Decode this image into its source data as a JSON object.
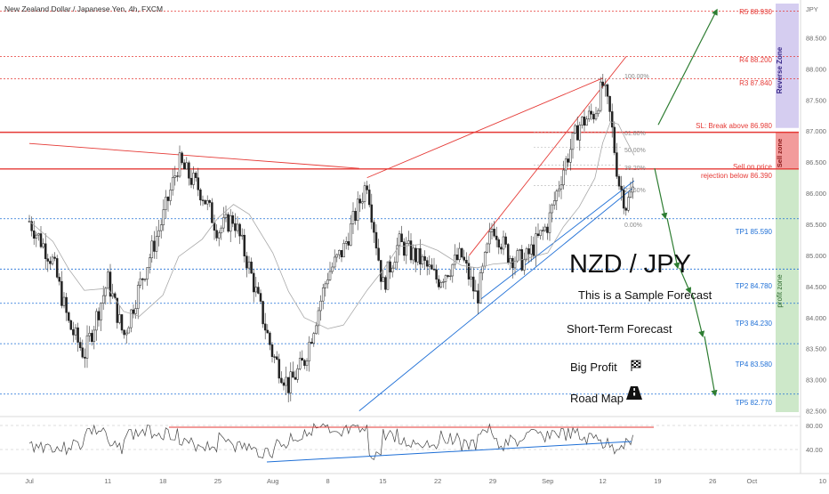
{
  "header": {
    "symbol_title": "New Zealand Dollar / Japanese Yen, 4h, FXCM",
    "currency": "JPY"
  },
  "chart_data": {
    "type": "candlestick",
    "ylim": [
      82.48,
      89.05
    ],
    "y_ticks": [
      "82.500",
      "83.000",
      "83.500",
      "84.000",
      "84.500",
      "85.000",
      "85.500",
      "86.000",
      "86.500",
      "87.000",
      "87.500",
      "88.000",
      "88.500"
    ],
    "x_ticks": [
      "Jul",
      "11",
      "18",
      "25",
      "Aug",
      "8",
      "15",
      "22",
      "29",
      "Sep",
      "12",
      "19",
      "26",
      "Oct",
      "10"
    ],
    "levels": [
      {
        "name": "R5",
        "value": 88.93,
        "label": "R5 88.930",
        "color": "#e53935"
      },
      {
        "name": "R4",
        "value": 88.2,
        "label": "R4 88.200",
        "color": "#e53935"
      },
      {
        "name": "R3",
        "value": 87.84,
        "label": "R3 87.840",
        "color": "#e53935"
      },
      {
        "name": "SL",
        "value": 86.98,
        "label": "SL: Break above 86.980",
        "color": "#e53935"
      },
      {
        "name": "Sell",
        "value": 86.39,
        "label_line1": "Sell on price",
        "label_line2": "rejection below 86.390",
        "color": "#e53935"
      },
      {
        "name": "TP1",
        "value": 85.59,
        "label": "TP1 85.590",
        "color": "#1e6fd6"
      },
      {
        "name": "TP2",
        "value": 84.78,
        "label": "TP2 84.780",
        "color": "#1e6fd6"
      },
      {
        "name": "TP3",
        "value": 84.23,
        "label": "TP3 84.230",
        "color": "#1e6fd6"
      },
      {
        "name": "TP4",
        "value": 83.58,
        "label": "TP4 83.580",
        "color": "#1e6fd6"
      },
      {
        "name": "TP5",
        "value": 82.77,
        "label": "TP5 82.770",
        "color": "#1e6fd6"
      }
    ],
    "fib_levels": [
      "100.00%",
      "61.80%",
      "50.00%",
      "38.20%",
      "23.60%",
      "0.00%"
    ],
    "price_path": [
      {
        "t": "Jul 1",
        "v": 85.55
      },
      {
        "t": "Jul 4",
        "v": 84.9
      },
      {
        "t": "Jul 6",
        "v": 83.9
      },
      {
        "t": "Jul 8",
        "v": 83.4
      },
      {
        "t": "Jul 11",
        "v": 84.6
      },
      {
        "t": "Jul 13",
        "v": 83.7
      },
      {
        "t": "Jul 15",
        "v": 84.5
      },
      {
        "t": "Jul 18",
        "v": 85.6
      },
      {
        "t": "Jul 20",
        "v": 86.5
      },
      {
        "t": "Jul 23",
        "v": 86.0
      },
      {
        "t": "Jul 25",
        "v": 85.4
      },
      {
        "t": "Jul 27",
        "v": 85.6
      },
      {
        "t": "Jul 29",
        "v": 84.8
      },
      {
        "t": "Aug 1",
        "v": 83.4
      },
      {
        "t": "Aug 3",
        "v": 82.9
      },
      {
        "t": "Aug 5",
        "v": 83.3
      },
      {
        "t": "Aug 8",
        "v": 84.7
      },
      {
        "t": "Aug 10",
        "v": 85.1
      },
      {
        "t": "Aug 13",
        "v": 86.2
      },
      {
        "t": "Aug 15",
        "v": 84.5
      },
      {
        "t": "Aug 17",
        "v": 85.2
      },
      {
        "t": "Aug 20",
        "v": 84.9
      },
      {
        "t": "Aug 22",
        "v": 84.6
      },
      {
        "t": "Aug 25",
        "v": 85.0
      },
      {
        "t": "Aug 27",
        "v": 84.3
      },
      {
        "t": "Aug 29",
        "v": 85.5
      },
      {
        "t": "Aug 31",
        "v": 85.0
      },
      {
        "t": "Sep 2",
        "v": 84.9
      },
      {
        "t": "Sep 5",
        "v": 85.5
      },
      {
        "t": "Sep 7",
        "v": 86.4
      },
      {
        "t": "Sep 9",
        "v": 87.1
      },
      {
        "t": "Sep 11",
        "v": 87.3
      },
      {
        "t": "Sep 12",
        "v": 87.75
      },
      {
        "t": "Sep 13",
        "v": 87.2
      },
      {
        "t": "Sep 14",
        "v": 86.2
      },
      {
        "t": "Sep 15",
        "v": 85.8
      },
      {
        "t": "Sep 16",
        "v": 86.1
      }
    ],
    "forecast_path": [
      {
        "t": "Sep 16",
        "v": 86.4
      },
      {
        "t": "Sep 20",
        "v": 85.6
      },
      {
        "t": "Sep 23",
        "v": 84.8
      },
      {
        "t": "Sep 25",
        "v": 84.4
      },
      {
        "t": "Sep 28",
        "v": 83.7
      },
      {
        "t": "Oct 1",
        "v": 82.75
      }
    ],
    "reverse_forecast": [
      {
        "t": "Sep 20",
        "v": 87.1
      },
      {
        "t": "Oct 1",
        "v": 88.95
      }
    ],
    "zones": [
      {
        "label": "Reverse Zone",
        "from": 87.05,
        "to": 89.05,
        "color": "#d5cdf0"
      },
      {
        "label": "Sell zone",
        "from": 86.39,
        "to": 86.98,
        "color": "#f29b9b"
      },
      {
        "label": "profit zone",
        "from": 82.48,
        "to": 86.39,
        "color": "#cde8c9"
      }
    ],
    "oscillator": {
      "ticks": [
        "80.00",
        "40.00"
      ]
    }
  },
  "annotations": {
    "pair": "NZD / JPY",
    "sample": "This is a Sample Forecast",
    "short_term": "Short-Term Forecast",
    "big_profit": "Big Profit",
    "road_map": "Road Map"
  }
}
